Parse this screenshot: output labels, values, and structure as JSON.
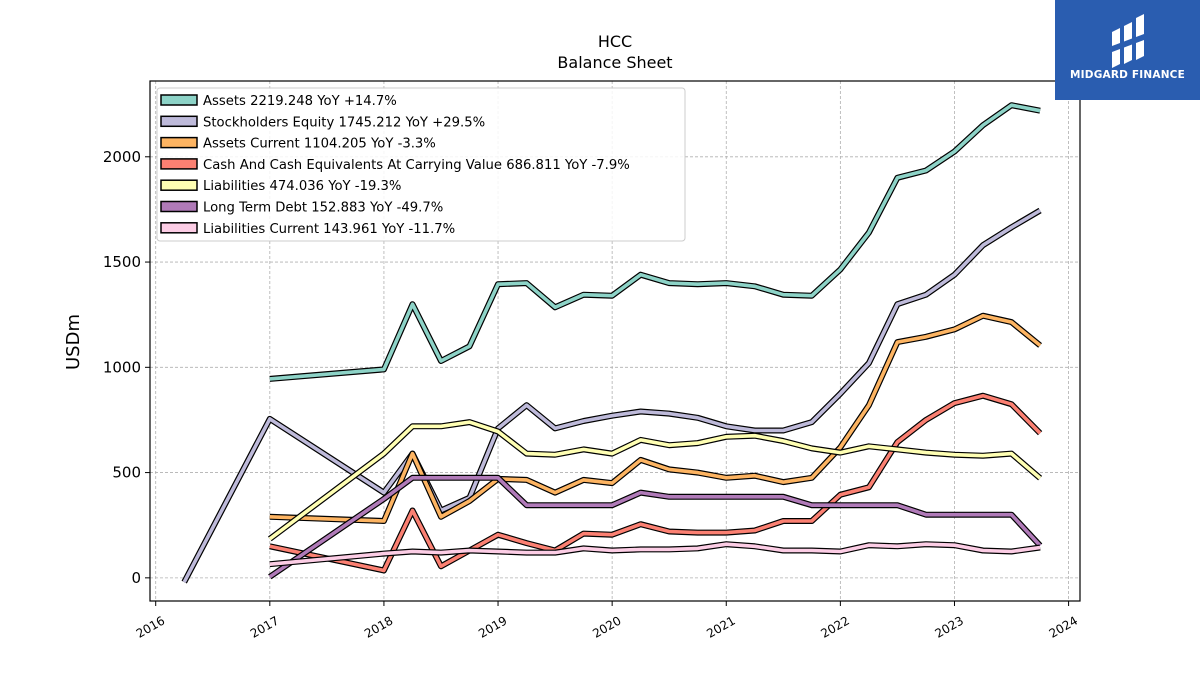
{
  "brand": {
    "name": "MIDGARD FINANCE",
    "bg": "#2a5db0"
  },
  "chart_data": {
    "type": "line",
    "title": "HCC",
    "subtitle": "Balance  Sheet",
    "ylabel": "USDm",
    "xlabel": "",
    "xlim": [
      2015.95,
      2024.1
    ],
    "ylim": [
      -110,
      2360
    ],
    "x_ticks": [
      2016,
      2017,
      2018,
      2019,
      2020,
      2021,
      2022,
      2023,
      2024
    ],
    "y_ticks": [
      0,
      500,
      1000,
      1500,
      2000
    ],
    "grid": true,
    "legend_position": "top-left",
    "series": [
      {
        "name": "Assets",
        "legend": "Assets  2219.248 YoY +14.7%",
        "color": "#8dd3c7",
        "x": [
          2017.0,
          2018.0,
          2018.25,
          2018.5,
          2018.75,
          2019.0,
          2019.25,
          2019.5,
          2019.75,
          2020.0,
          2020.25,
          2020.5,
          2020.75,
          2021.0,
          2021.25,
          2021.5,
          2021.75,
          2022.0,
          2022.25,
          2022.5,
          2022.75,
          2023.0,
          2023.25,
          2023.5,
          2023.75
        ],
        "y": [
          945,
          990,
          1300,
          1030,
          1100,
          1395,
          1400,
          1285,
          1345,
          1340,
          1440,
          1400,
          1395,
          1400,
          1385,
          1345,
          1340,
          1465,
          1640,
          1900,
          1935,
          2025,
          2150,
          2245,
          2219
        ]
      },
      {
        "name": "Stockholders Equity",
        "legend": "Stockholders Equity  1745.212 YoY +29.5%",
        "color": "#bebada",
        "x": [
          2016.25,
          2017.0,
          2018.0,
          2018.25,
          2018.5,
          2018.75,
          2019.0,
          2019.25,
          2019.5,
          2019.75,
          2020.0,
          2020.25,
          2020.5,
          2020.75,
          2021.0,
          2021.25,
          2021.5,
          2021.75,
          2022.0,
          2022.25,
          2022.5,
          2022.75,
          2023.0,
          2023.25,
          2023.5,
          2023.75
        ],
        "y": [
          -20,
          755,
          405,
          590,
          320,
          380,
          710,
          820,
          710,
          745,
          770,
          790,
          780,
          760,
          720,
          700,
          700,
          740,
          875,
          1020,
          1300,
          1345,
          1440,
          1580,
          1665,
          1745
        ]
      },
      {
        "name": "Assets Current",
        "legend": "Assets Current  1104.205 YoY -3.3%",
        "color": "#fdb462",
        "x": [
          2017.0,
          2018.0,
          2018.25,
          2018.5,
          2018.75,
          2019.0,
          2019.25,
          2019.5,
          2019.75,
          2020.0,
          2020.25,
          2020.5,
          2020.75,
          2021.0,
          2021.25,
          2021.5,
          2021.75,
          2022.0,
          2022.25,
          2022.5,
          2022.75,
          2023.0,
          2023.25,
          2023.5,
          2023.75
        ],
        "y": [
          290,
          270,
          590,
          290,
          365,
          470,
          465,
          405,
          465,
          450,
          560,
          515,
          500,
          475,
          485,
          455,
          475,
          620,
          820,
          1120,
          1145,
          1180,
          1245,
          1215,
          1104
        ]
      },
      {
        "name": "Cash And Cash Equivalents At Carrying Value",
        "legend": "Cash And Cash Equivalents At Carrying Value  686.811 YoY -7.9%",
        "color": "#fb8072",
        "x": [
          2017.0,
          2018.0,
          2018.25,
          2018.5,
          2018.75,
          2019.0,
          2019.25,
          2019.5,
          2019.75,
          2020.0,
          2020.25,
          2020.5,
          2020.75,
          2021.0,
          2021.25,
          2021.5,
          2021.75,
          2022.0,
          2022.25,
          2022.5,
          2022.75,
          2023.0,
          2023.25,
          2023.5,
          2023.75
        ],
        "y": [
          150,
          35,
          320,
          55,
          130,
          205,
          165,
          130,
          210,
          205,
          255,
          220,
          215,
          215,
          225,
          270,
          270,
          395,
          430,
          645,
          750,
          830,
          865,
          825,
          687
        ]
      },
      {
        "name": "Liabilities",
        "legend": "Liabilities  474.036 YoY -19.3%",
        "color": "#ffffb3",
        "x": [
          2017.0,
          2018.0,
          2018.25,
          2018.5,
          2018.75,
          2019.0,
          2019.25,
          2019.5,
          2019.75,
          2020.0,
          2020.25,
          2020.5,
          2020.75,
          2021.0,
          2021.25,
          2021.5,
          2021.75,
          2022.0,
          2022.25,
          2022.5,
          2022.75,
          2023.0,
          2023.25,
          2023.5,
          2023.75
        ],
        "y": [
          185,
          590,
          720,
          720,
          740,
          695,
          590,
          585,
          610,
          590,
          655,
          630,
          640,
          670,
          675,
          650,
          615,
          595,
          625,
          610,
          595,
          585,
          580,
          590,
          474
        ]
      },
      {
        "name": "Long Term Debt",
        "legend": "Long Term Debt  152.883 YoY -49.7%",
        "color": "#b07ab8",
        "x": [
          2017.0,
          2018.0,
          2018.25,
          2018.5,
          2018.75,
          2019.0,
          2019.25,
          2019.5,
          2019.75,
          2020.0,
          2020.25,
          2020.5,
          2020.75,
          2021.0,
          2021.25,
          2021.5,
          2021.75,
          2022.0,
          2022.25,
          2022.5,
          2022.75,
          2023.0,
          2023.25,
          2023.5,
          2023.75
        ],
        "y": [
          5,
          375,
          475,
          475,
          475,
          475,
          345,
          345,
          345,
          345,
          405,
          385,
          385,
          385,
          385,
          385,
          345,
          345,
          345,
          345,
          300,
          300,
          300,
          300,
          153
        ]
      },
      {
        "name": "Liabilities Current",
        "legend": "Liabilities Current  143.961 YoY -11.7%",
        "color": "#fccde5",
        "x": [
          2017.0,
          2018.0,
          2018.25,
          2018.5,
          2018.75,
          2019.0,
          2019.25,
          2019.5,
          2019.75,
          2020.0,
          2020.25,
          2020.5,
          2020.75,
          2021.0,
          2021.25,
          2021.5,
          2021.75,
          2022.0,
          2022.25,
          2022.5,
          2022.75,
          2023.0,
          2023.25,
          2023.5,
          2023.75
        ],
        "y": [
          65,
          115,
          125,
          120,
          130,
          125,
          120,
          120,
          140,
          130,
          135,
          135,
          140,
          160,
          150,
          130,
          130,
          125,
          155,
          150,
          160,
          155,
          130,
          125,
          144
        ]
      }
    ]
  }
}
